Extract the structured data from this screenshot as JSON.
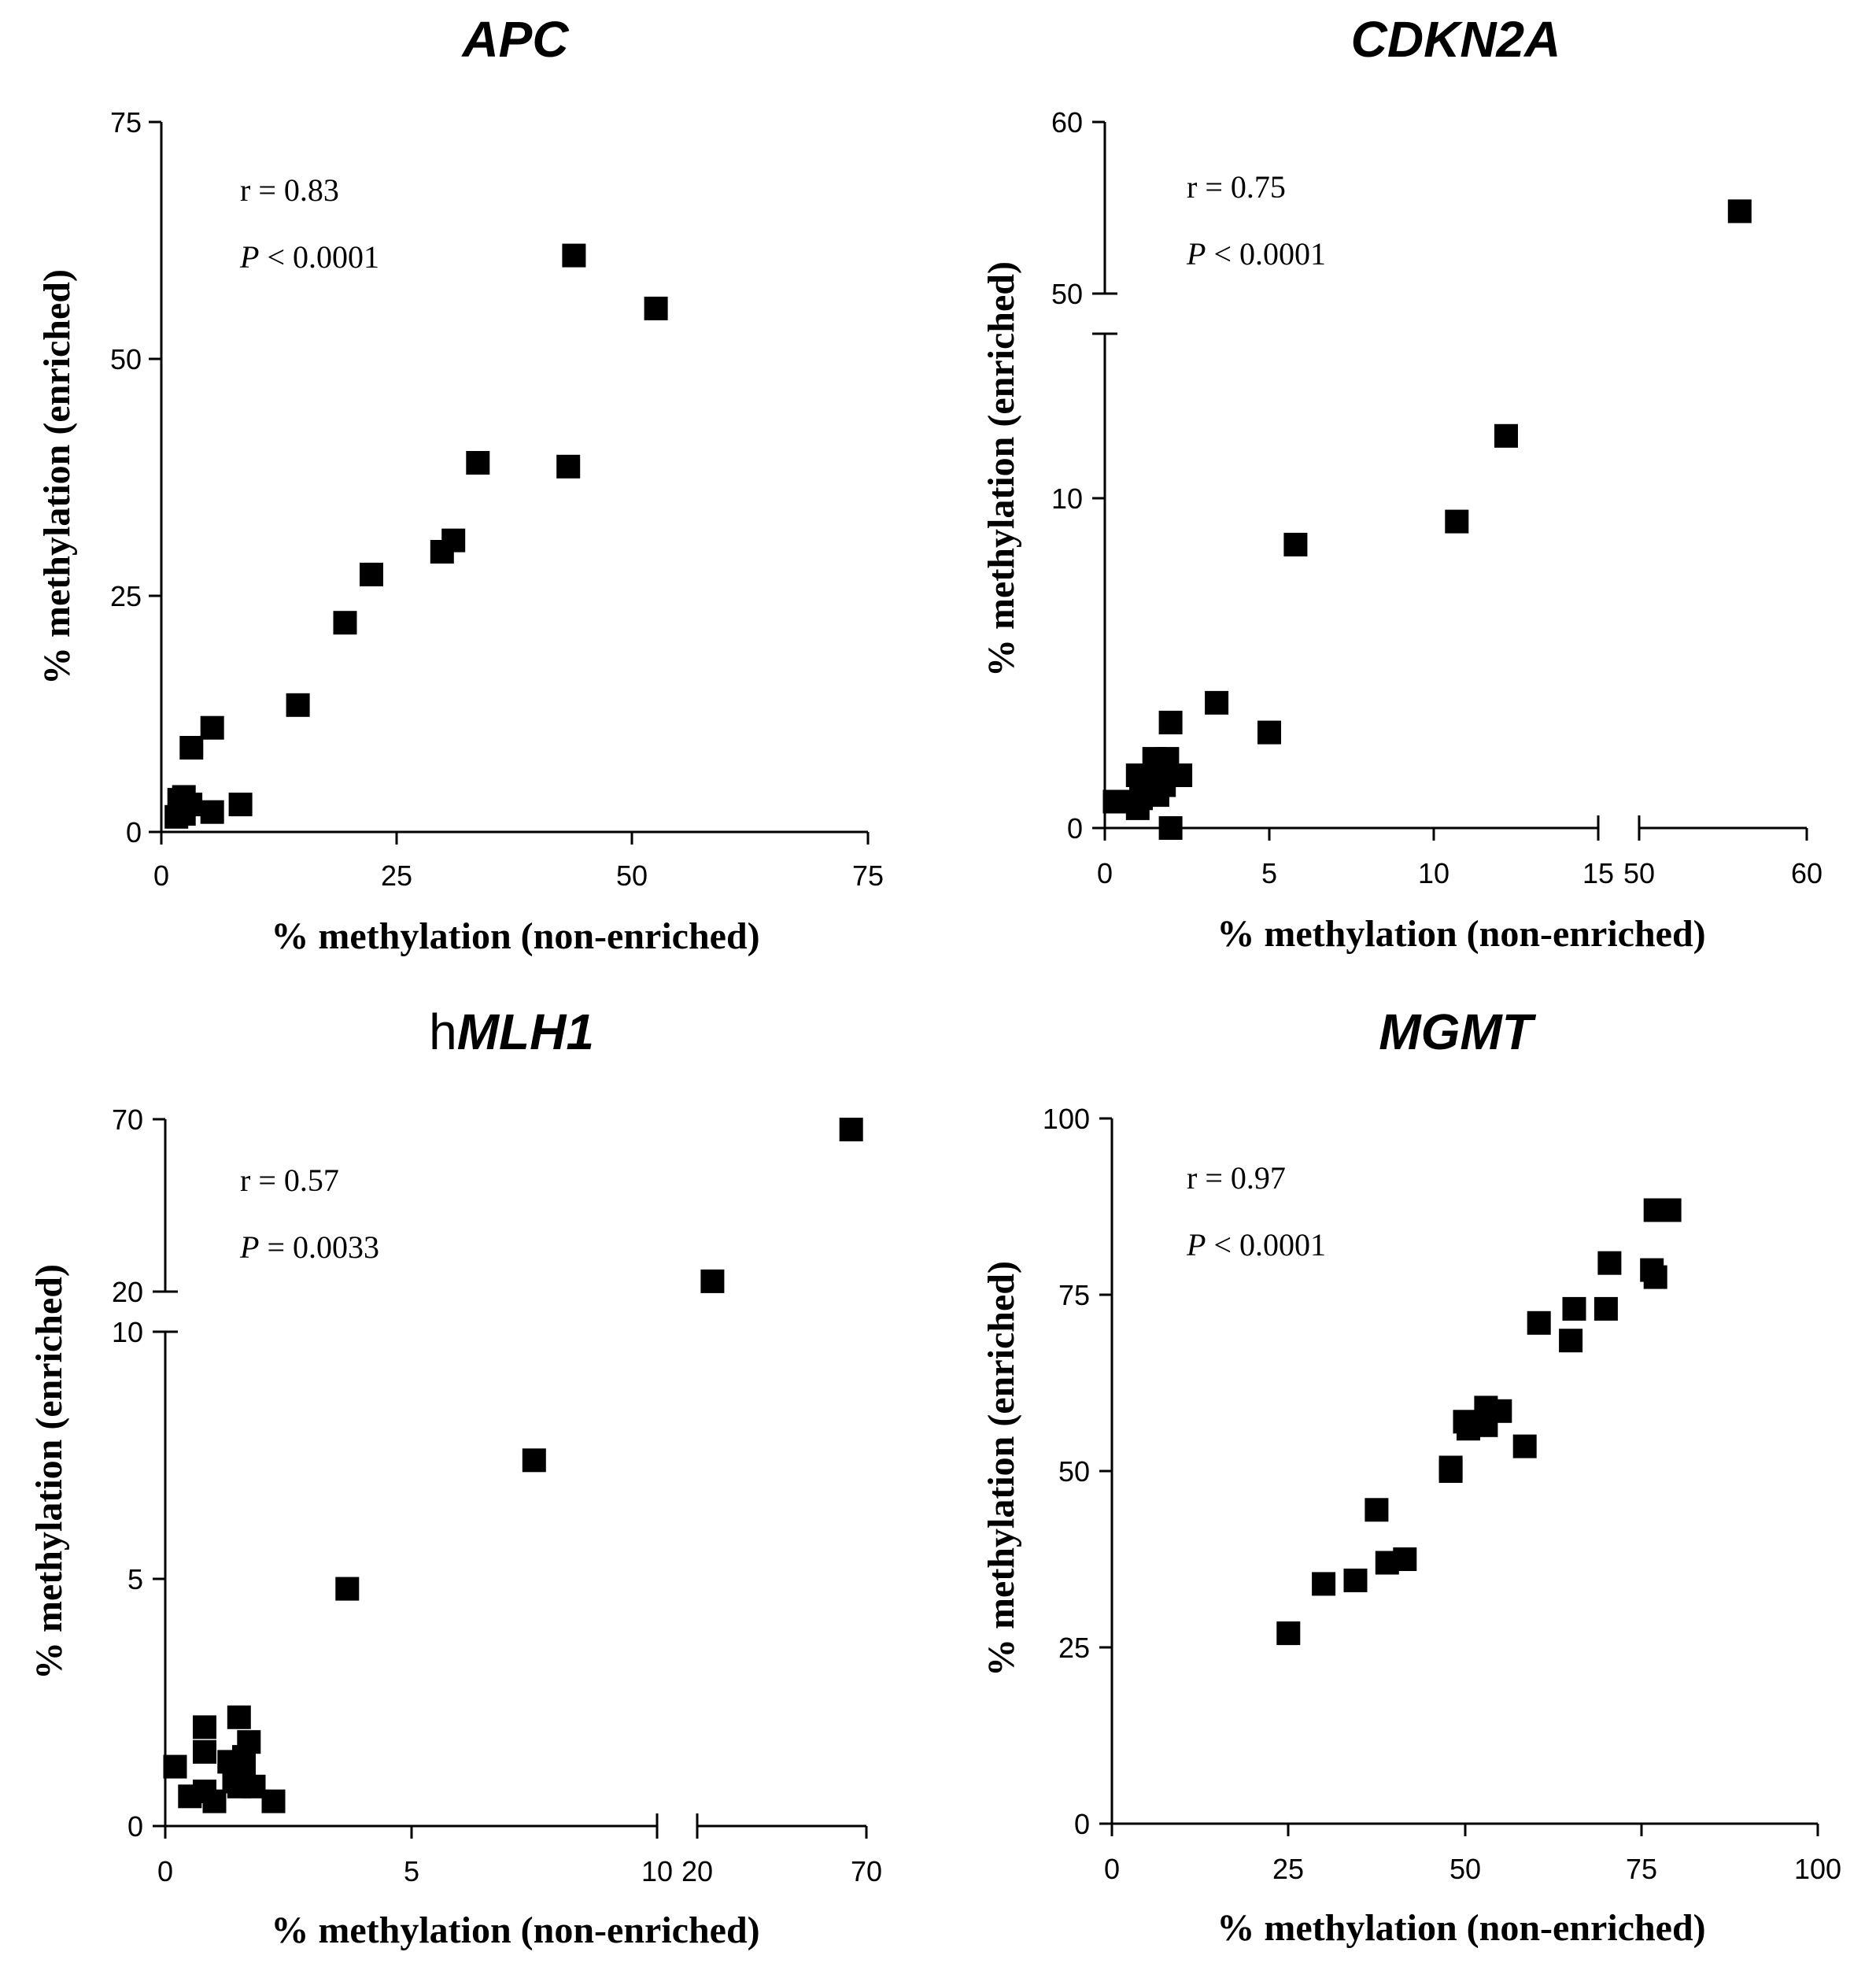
{
  "chart_data": [
    {
      "type": "scatter",
      "id": "apc",
      "title": {
        "prefix": "",
        "gene": "APC"
      },
      "xlabel": "% methylation (non-enriched)",
      "ylabel": "% methylation (enriched)",
      "annotation": {
        "r": "r = 0.83",
        "p_symbol": "P",
        "p_rest": " < 0.0001"
      },
      "xlim": [
        0,
        75
      ],
      "ylim": [
        0,
        75
      ],
      "x_ticks": [
        0,
        25,
        50,
        75
      ],
      "y_ticks": [
        0,
        25,
        50,
        75
      ],
      "x_tick_labels": [
        "0",
        "25",
        "50",
        "75"
      ],
      "y_tick_labels": [
        "0",
        "25",
        "50",
        "75"
      ],
      "points": [
        [
          43.8,
          60.9
        ],
        [
          52.5,
          55.3
        ],
        [
          33.6,
          39.0
        ],
        [
          43.2,
          38.6
        ],
        [
          31.0,
          30.8
        ],
        [
          29.8,
          29.6
        ],
        [
          22.3,
          27.2
        ],
        [
          19.5,
          22.1
        ],
        [
          14.5,
          13.4
        ],
        [
          5.4,
          11.0
        ],
        [
          3.2,
          8.9
        ],
        [
          8.4,
          2.9
        ],
        [
          5.4,
          2.1
        ],
        [
          2.4,
          3.7
        ],
        [
          1.9,
          3.4
        ],
        [
          3.1,
          2.9
        ],
        [
          1.6,
          1.6
        ],
        [
          2.4,
          1.9
        ]
      ]
    },
    {
      "type": "scatter",
      "id": "cdkn2a",
      "title": {
        "prefix": "",
        "gene": "CDKN2A"
      },
      "xlabel": "% methylation (non-enriched)",
      "ylabel": "% methylation (enriched)",
      "annotation": {
        "r": "r = 0.75",
        "p_symbol": "P",
        "p_rest": " < 0.0001"
      },
      "x_segments": [
        {
          "range": [
            0,
            15
          ],
          "ticks": [
            0,
            5,
            10,
            15
          ],
          "tick_labels": [
            "0",
            "5",
            "10",
            "15"
          ]
        },
        {
          "range": [
            50,
            60
          ],
          "ticks": [
            50,
            60
          ],
          "tick_labels": [
            "50",
            "60"
          ]
        }
      ],
      "y_segments": [
        {
          "range": [
            0,
            15
          ],
          "ticks": [
            0,
            10
          ],
          "tick_labels": [
            "0",
            "10"
          ]
        },
        {
          "range": [
            50,
            60
          ],
          "ticks": [
            50,
            60
          ],
          "tick_labels": [
            "50",
            "60"
          ]
        }
      ],
      "points": [
        [
          56.0,
          54.8
        ],
        [
          12.2,
          11.9
        ],
        [
          10.7,
          9.3
        ],
        [
          5.8,
          8.6
        ],
        [
          3.4,
          3.8
        ],
        [
          5.0,
          2.9
        ],
        [
          2.0,
          3.2
        ],
        [
          1.5,
          2.1
        ],
        [
          1.9,
          2.1
        ],
        [
          2.3,
          1.6
        ],
        [
          1.0,
          1.6
        ],
        [
          1.6,
          1.5
        ],
        [
          1.3,
          1.3
        ],
        [
          1.8,
          1.3
        ],
        [
          0.6,
          0.8
        ],
        [
          0.3,
          0.8
        ],
        [
          1.1,
          0.9
        ],
        [
          1.6,
          1.0
        ],
        [
          1.0,
          0.6
        ],
        [
          2.0,
          0.0
        ]
      ]
    },
    {
      "type": "scatter",
      "id": "hmlh1",
      "title": {
        "prefix": "h",
        "gene": "MLH1"
      },
      "xlabel": "% methylation (non-enriched)",
      "ylabel": "% methylation (enriched)",
      "annotation": {
        "r": "r = 0.57",
        "p_symbol": "P",
        "p_rest": " = 0.0033"
      },
      "x_segments": [
        {
          "range": [
            0,
            10
          ],
          "ticks": [
            0,
            5,
            10
          ],
          "tick_labels": [
            "0",
            "5",
            "10"
          ]
        },
        {
          "range": [
            20,
            70
          ],
          "ticks": [
            20,
            70
          ],
          "tick_labels": [
            "20",
            "70"
          ]
        }
      ],
      "y_segments": [
        {
          "range": [
            0,
            10
          ],
          "ticks": [
            0,
            5,
            10
          ],
          "tick_labels": [
            "0",
            "5",
            "10"
          ]
        },
        {
          "range": [
            20,
            70
          ],
          "ticks": [
            20,
            70
          ],
          "tick_labels": [
            "20",
            "70"
          ]
        }
      ],
      "points": [
        [
          65.5,
          67.0
        ],
        [
          24.5,
          23.0
        ],
        [
          7.5,
          7.4
        ],
        [
          3.7,
          4.8
        ],
        [
          1.5,
          2.2
        ],
        [
          0.8,
          2.0
        ],
        [
          1.7,
          1.7
        ],
        [
          0.8,
          1.5
        ],
        [
          1.6,
          1.4
        ],
        [
          1.3,
          1.3
        ],
        [
          0.2,
          1.2
        ],
        [
          1.6,
          1.0
        ],
        [
          1.4,
          0.9
        ],
        [
          1.8,
          0.8
        ],
        [
          0.5,
          0.6
        ],
        [
          0.8,
          0.7
        ],
        [
          1.0,
          0.5
        ],
        [
          2.2,
          0.5
        ],
        [
          1.5,
          0.8
        ]
      ]
    },
    {
      "type": "scatter",
      "id": "mgmt",
      "title": {
        "prefix": "",
        "gene": "MGMT"
      },
      "xlabel": "% methylation (non-enriched)",
      "ylabel": "% methylation (enriched)",
      "annotation": {
        "r": "r = 0.97",
        "p_symbol": "P",
        "p_rest": " < 0.0001"
      },
      "xlim": [
        0,
        100
      ],
      "ylim": [
        0,
        100
      ],
      "x_ticks": [
        0,
        25,
        50,
        75,
        100
      ],
      "y_ticks": [
        0,
        25,
        50,
        75,
        100
      ],
      "x_tick_labels": [
        "0",
        "25",
        "50",
        "75",
        "100"
      ],
      "y_tick_labels": [
        "0",
        "25",
        "50",
        "75",
        "100"
      ],
      "points": [
        [
          77.0,
          87.0
        ],
        [
          79.0,
          87.0
        ],
        [
          70.5,
          79.5
        ],
        [
          76.5,
          78.5
        ],
        [
          77.0,
          77.5
        ],
        [
          65.5,
          73.0
        ],
        [
          70.0,
          73.0
        ],
        [
          60.5,
          71.0
        ],
        [
          65.0,
          68.5
        ],
        [
          53.0,
          59.0
        ],
        [
          55.0,
          58.5
        ],
        [
          50.0,
          57.0
        ],
        [
          53.0,
          56.5
        ],
        [
          50.5,
          56.0
        ],
        [
          58.5,
          53.5
        ],
        [
          48.0,
          50.5
        ],
        [
          48.0,
          50.0
        ],
        [
          37.5,
          44.5
        ],
        [
          41.5,
          37.5
        ],
        [
          39.0,
          37.0
        ],
        [
          34.5,
          34.5
        ],
        [
          30.0,
          34.0
        ],
        [
          25.0,
          27.0
        ]
      ]
    }
  ]
}
